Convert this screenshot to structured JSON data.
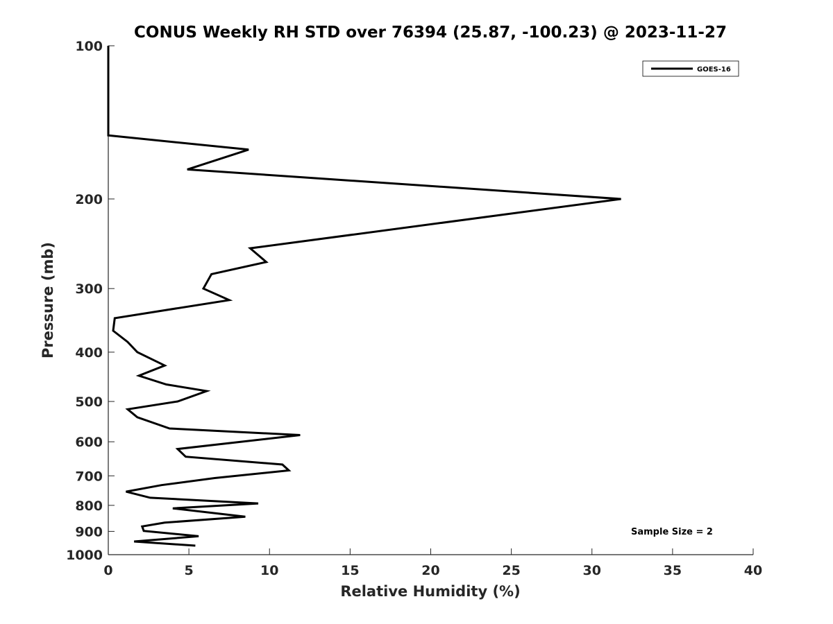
{
  "chart_data": {
    "type": "line",
    "title": "CONUS Weekly RH STD over 76394 (25.87, -100.23) @ 2023-11-27",
    "xlabel": "Relative Humidity (%)",
    "ylabel": "Pressure (mb)",
    "xlim": [
      0,
      40
    ],
    "ylim": [
      100,
      1000
    ],
    "y_scale": "log",
    "y_reversed": true,
    "x_ticks": [
      0,
      5,
      10,
      15,
      20,
      25,
      30,
      35,
      40
    ],
    "y_ticks": [
      100,
      200,
      300,
      400,
      500,
      600,
      700,
      800,
      900,
      1000
    ],
    "x_tick_labels": [
      "0",
      "5",
      "10",
      "15",
      "20",
      "25",
      "30",
      "35",
      "40"
    ],
    "y_tick_labels": [
      "100",
      "200",
      "300",
      "400",
      "500",
      "600",
      "700",
      "800",
      "900",
      "1000"
    ],
    "grid": false,
    "legend_position": "top-right",
    "annotation": "Sample Size = 2",
    "series": [
      {
        "name": "GOES-16",
        "color": "#000000",
        "points": [
          [
            0.0,
            100
          ],
          [
            0.0,
            125
          ],
          [
            0.0,
            150
          ],
          [
            8.7,
            160
          ],
          [
            4.9,
            175
          ],
          [
            31.8,
            200
          ],
          [
            8.8,
            250
          ],
          [
            9.8,
            266
          ],
          [
            6.4,
            281
          ],
          [
            5.9,
            300
          ],
          [
            7.5,
            316
          ],
          [
            0.4,
            343
          ],
          [
            0.3,
            363
          ],
          [
            1.2,
            382
          ],
          [
            1.8,
            400
          ],
          [
            3.5,
            425
          ],
          [
            1.9,
            445
          ],
          [
            3.6,
            463
          ],
          [
            6.1,
            477
          ],
          [
            4.3,
            500
          ],
          [
            1.2,
            518
          ],
          [
            1.8,
            537
          ],
          [
            3.8,
            565
          ],
          [
            11.9,
            582
          ],
          [
            4.3,
            620
          ],
          [
            4.8,
            642
          ],
          [
            10.8,
            665
          ],
          [
            11.2,
            683
          ],
          [
            6.6,
            707
          ],
          [
            3.3,
            730
          ],
          [
            1.1,
            752
          ],
          [
            2.6,
            773
          ],
          [
            9.3,
            793
          ],
          [
            4.0,
            811
          ],
          [
            8.5,
            842
          ],
          [
            3.5,
            865
          ],
          [
            2.1,
            880
          ],
          [
            2.2,
            898
          ],
          [
            5.6,
            920
          ],
          [
            1.6,
            942
          ],
          [
            5.4,
            960
          ]
        ]
      }
    ]
  }
}
